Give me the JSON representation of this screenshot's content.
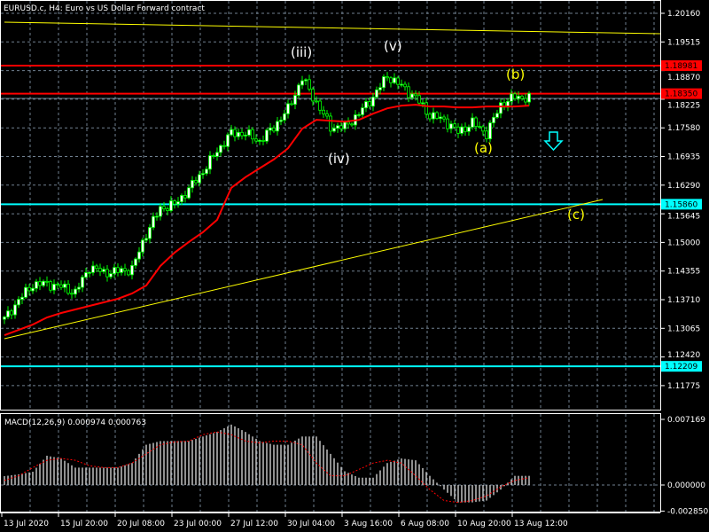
{
  "header": {
    "title": "EURUSD.c, H4:  Euro vs US Dollar Forward contract"
  },
  "macd_label": "MACD(12,26,9) 0.000974 0.000763",
  "colors": {
    "background": "#000000",
    "bull_candle": "#00ff00",
    "moving_average": "#ff0000",
    "trendline": "#ffff00",
    "support_line": "#00ffff",
    "resistance_line": "#ff0000",
    "macd_histogram": "#c0c0c0",
    "macd_signal": "#ff0000",
    "grid": "#708090"
  },
  "chart_data": [
    {
      "type": "candlestick",
      "symbol": "EURUSD.c",
      "timeframe": "H4",
      "ylim": [
        1.115,
        1.203
      ],
      "price_ticks": [
        "1.20160",
        "1.19515",
        "1.18870",
        "1.18225",
        "1.17580",
        "1.16935",
        "1.16290",
        "1.15645",
        "1.15000",
        "1.14355",
        "1.13710",
        "1.13065",
        "1.12420",
        "1.11775"
      ],
      "x_ticks": [
        "13 Jul 2020",
        "15 Jul 20:00",
        "20 Jul 08:00",
        "23 Jul 00:00",
        "27 Jul 12:00",
        "30 Jul 04:00",
        "3 Aug 16:00",
        "6 Aug 08:00",
        "10 Aug 20:00",
        "13 Aug 12:00"
      ],
      "close": [
        1.1327,
        1.137,
        1.1405,
        1.1407,
        1.14,
        1.1387,
        1.1445,
        1.1432,
        1.1435,
        1.144,
        1.152,
        1.1577,
        1.1585,
        1.162,
        1.166,
        1.1706,
        1.1746,
        1.1745,
        1.1728,
        1.176,
        1.18,
        1.187,
        1.1815,
        1.176,
        1.176,
        1.179,
        1.1828,
        1.1875,
        1.1852,
        1.1826,
        1.1786,
        1.1776,
        1.1748,
        1.177,
        1.1745,
        1.181,
        1.1828,
        1.1825
      ],
      "moving_average": [
        1.1291,
        1.1303,
        1.1315,
        1.1331,
        1.1341,
        1.1349,
        1.1357,
        1.1365,
        1.1373,
        1.1385,
        1.1403,
        1.1447,
        1.1477,
        1.1501,
        1.1523,
        1.1551,
        1.1623,
        1.1647,
        1.1667,
        1.1687,
        1.1712,
        1.1756,
        1.1776,
        1.1774,
        1.1772,
        1.1776,
        1.179,
        1.1802,
        1.1808,
        1.181,
        1.1806,
        1.1806,
        1.1804,
        1.1804,
        1.1806,
        1.1806,
        1.1806,
        1.1808
      ],
      "horizontal_lines": [
        {
          "price": "1.18981",
          "color": "#ff0000"
        },
        {
          "price": "1.18350",
          "color": "#ff0000"
        },
        {
          "price": "1.15860",
          "color": "#00ffff"
        },
        {
          "price": "1.12209",
          "color": "#00ffff"
        }
      ],
      "wave_labels": [
        {
          "text": "(iii)",
          "color": "#ffffff"
        },
        {
          "text": "(v)",
          "color": "#ffffff"
        },
        {
          "text": "(iv)",
          "color": "#ffffff"
        },
        {
          "text": "(a)",
          "color": "#ffff00"
        },
        {
          "text": "(b)",
          "color": "#ffff00"
        },
        {
          "text": "(c)",
          "color": "#ffff00"
        }
      ],
      "arrow": {
        "direction": "down",
        "color": "#00ffff"
      }
    },
    {
      "type": "bar",
      "name": "MACD(12,26,9)",
      "ylim": [
        -0.00285,
        0.007169
      ],
      "y_ticks": [
        "0.007169",
        "0.000000",
        "-0.002850"
      ],
      "histogram": [
        0.00097,
        0.00116,
        0.00145,
        0.0032,
        0.0029,
        0.0019,
        0.0019,
        0.0019,
        0.0019,
        0.0024,
        0.0044,
        0.0048,
        0.0048,
        0.0048,
        0.0053,
        0.0058,
        0.0066,
        0.0058,
        0.0048,
        0.0044,
        0.0044,
        0.0053,
        0.0053,
        0.0034,
        0.0015,
        0.0008,
        0.0008,
        0.0024,
        0.0029,
        0.0027,
        0.001,
        -0.0005,
        -0.0019,
        -0.0019,
        -0.0017,
        -0.0005,
        0.001,
        0.001
      ],
      "signal": [
        0.0005,
        0.001,
        0.0019,
        0.0027,
        0.0029,
        0.0027,
        0.0021,
        0.0019,
        0.0019,
        0.0024,
        0.0034,
        0.0044,
        0.0047,
        0.0048,
        0.0055,
        0.0058,
        0.0055,
        0.0048,
        0.0046,
        0.0048,
        0.0048,
        0.0044,
        0.0024,
        0.001,
        0.001,
        0.0017,
        0.0024,
        0.0027,
        0.0024,
        0.001,
        -0.0005,
        -0.0017,
        -0.0019,
        -0.0017,
        -0.0012,
        -0.0002,
        0.0005,
        0.0008
      ]
    }
  ]
}
